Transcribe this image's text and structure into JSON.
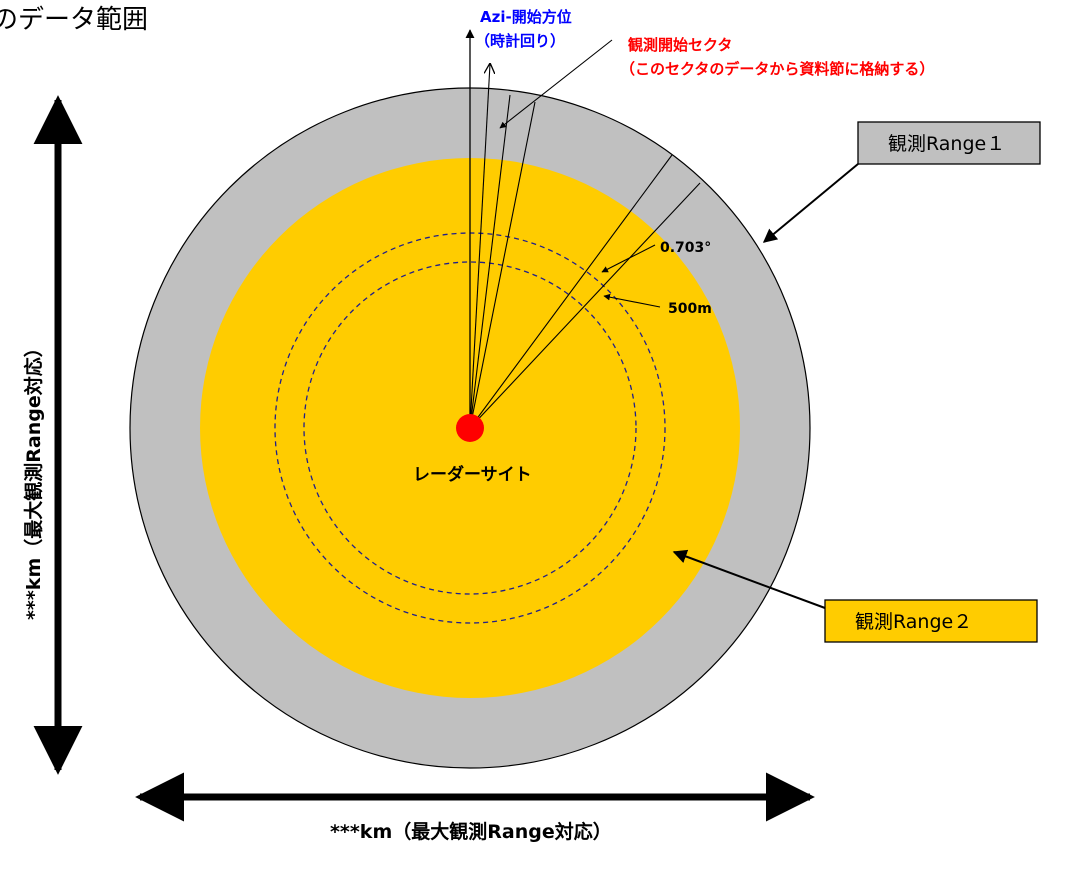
{
  "title": "のデータ範囲",
  "colors": {
    "outer_range": "#c0c0c0",
    "inner_range": "#ffcc00",
    "radar_site": "#ff0000",
    "azi_label": "#0000ff",
    "sector_label": "#ff0000",
    "dashed_circle": "#1f1f8c",
    "range2_box": "#ffcc00",
    "range1_box": "#c0c0c0"
  },
  "labels": {
    "azi_line1": "Azi-開始方位",
    "azi_line2": "（時計回り）",
    "sector_line1": "観測開始セクタ",
    "sector_line2": "（このセクタのデータから資料節に格納する）",
    "range1": "観測Range１",
    "range2": "観測Range２",
    "sector_angle": "0.703°",
    "range_step": "500m",
    "radar_site": "レーダーサイト",
    "horizontal_extent": "***km（最大観測Range対応）",
    "vertical_extent": "***km（最大観測Range対応）"
  }
}
